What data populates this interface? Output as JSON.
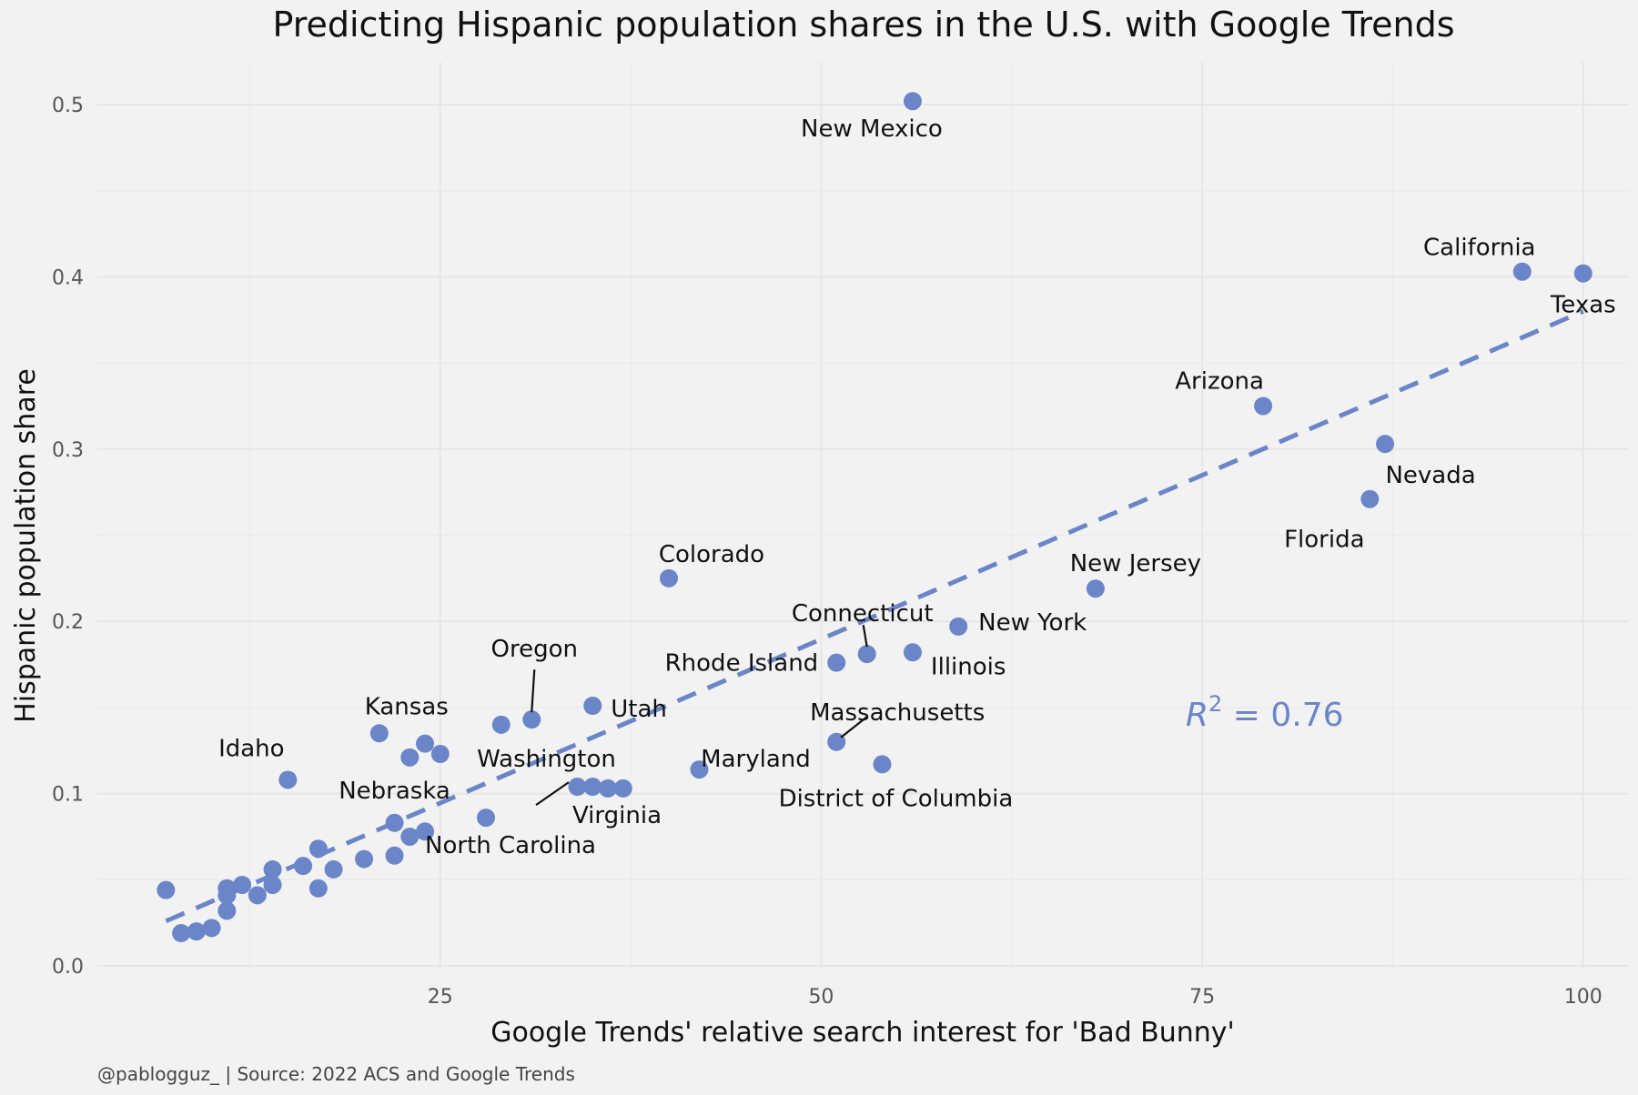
{
  "chart_data": {
    "type": "scatter",
    "title": "Predicting Hispanic population shares in the U.S. with Google Trends",
    "xlabel": "Google Trends' relative search interest for 'Bad Bunny'",
    "ylabel": "Hispanic population share",
    "caption": "@pablogguz_ | Source: 2022 ACS and Google Trends",
    "xlim": [
      2.5,
      103
    ],
    "ylim": [
      0,
      0.5
    ],
    "x_ticks": [
      25,
      50,
      75,
      100
    ],
    "x_tick_labels": [
      "25",
      "50",
      "75",
      "100"
    ],
    "y_ticks": [
      0.0,
      0.1,
      0.2,
      0.3,
      0.4,
      0.5
    ],
    "y_tick_labels": [
      "0.0",
      "0.1",
      "0.2",
      "0.3",
      "0.4",
      "0.5"
    ],
    "grid": true,
    "point_color": "#6a86c8",
    "line_color": "#6a86c8",
    "annotation": {
      "r2_symbol": "R",
      "r2_exponent": "2",
      "r2_value_text": " = 0.76"
    },
    "trend_line": {
      "x": [
        7,
        100
      ],
      "y": [
        0.026,
        0.38
      ],
      "style": "dashed"
    },
    "points": [
      {
        "x": 56,
        "y": 0.502,
        "label": "New Mexico"
      },
      {
        "x": 96,
        "y": 0.403,
        "label": "California"
      },
      {
        "x": 100,
        "y": 0.402,
        "label": "Texas"
      },
      {
        "x": 79,
        "y": 0.325,
        "label": "Arizona"
      },
      {
        "x": 87,
        "y": 0.303,
        "label": "Nevada"
      },
      {
        "x": 86,
        "y": 0.271,
        "label": "Florida"
      },
      {
        "x": 68,
        "y": 0.219,
        "label": "New Jersey"
      },
      {
        "x": 40,
        "y": 0.225,
        "label": "Colorado"
      },
      {
        "x": 59,
        "y": 0.197,
        "label": "New York"
      },
      {
        "x": 53,
        "y": 0.181,
        "label": "Connecticut"
      },
      {
        "x": 56,
        "y": 0.182,
        "label": "Illinois"
      },
      {
        "x": 51,
        "y": 0.176,
        "label": "Rhode Island"
      },
      {
        "x": 31,
        "y": 0.143,
        "label": "Oregon"
      },
      {
        "x": 35,
        "y": 0.151,
        "label": "Utah"
      },
      {
        "x": 51,
        "y": 0.13,
        "label": "Massachusetts"
      },
      {
        "x": 54,
        "y": 0.117,
        "label": "District of Columbia"
      },
      {
        "x": 42,
        "y": 0.114,
        "label": "Maryland"
      },
      {
        "x": 21,
        "y": 0.135,
        "label": "Kansas"
      },
      {
        "x": 15,
        "y": 0.108,
        "label": "Idaho"
      },
      {
        "x": 34,
        "y": 0.104,
        "label": "Washington"
      },
      {
        "x": 36,
        "y": 0.103,
        "label": "Virginia"
      },
      {
        "x": 22,
        "y": 0.083,
        "label": "Nebraska"
      },
      {
        "x": 28,
        "y": 0.086,
        "label": "North Carolina"
      },
      {
        "x": 29,
        "y": 0.14
      },
      {
        "x": 23,
        "y": 0.121
      },
      {
        "x": 24,
        "y": 0.129
      },
      {
        "x": 25,
        "y": 0.123
      },
      {
        "x": 35,
        "y": 0.104
      },
      {
        "x": 37,
        "y": 0.103
      },
      {
        "x": 23,
        "y": 0.075
      },
      {
        "x": 24,
        "y": 0.078
      },
      {
        "x": 22,
        "y": 0.064
      },
      {
        "x": 20,
        "y": 0.062
      },
      {
        "x": 18,
        "y": 0.056
      },
      {
        "x": 17,
        "y": 0.068
      },
      {
        "x": 16,
        "y": 0.058
      },
      {
        "x": 17,
        "y": 0.045
      },
      {
        "x": 14,
        "y": 0.056
      },
      {
        "x": 14,
        "y": 0.047
      },
      {
        "x": 13,
        "y": 0.041
      },
      {
        "x": 12,
        "y": 0.047
      },
      {
        "x": 11,
        "y": 0.045
      },
      {
        "x": 11,
        "y": 0.041
      },
      {
        "x": 11,
        "y": 0.032
      },
      {
        "x": 10,
        "y": 0.022
      },
      {
        "x": 9,
        "y": 0.02
      },
      {
        "x": 8,
        "y": 0.019
      },
      {
        "x": 7,
        "y": 0.044
      }
    ]
  }
}
